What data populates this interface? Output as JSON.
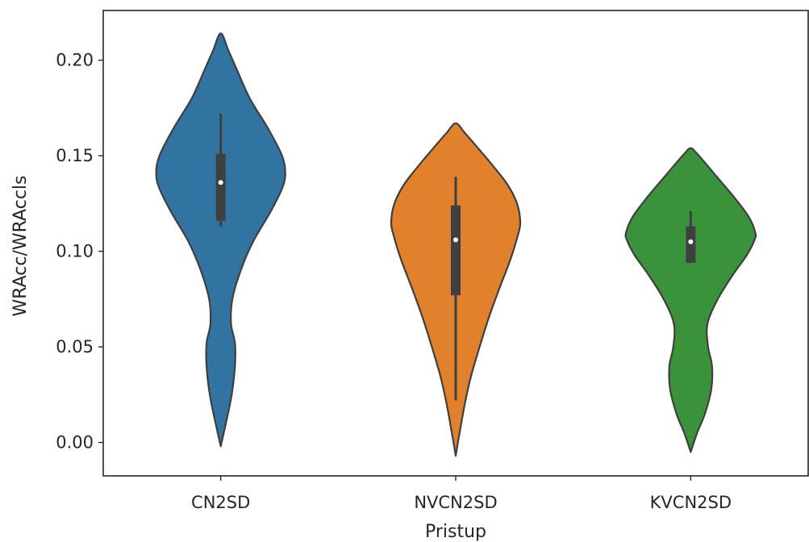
{
  "chart_data": {
    "type": "violin",
    "xlabel": "Pristup",
    "ylabel": "WRAcc/WRAccls",
    "ylim": [
      -0.0175,
      0.226
    ],
    "yticks": [
      0.0,
      0.05,
      0.1,
      0.15,
      0.2
    ],
    "ytick_labels": [
      "0.00",
      "0.05",
      "0.10",
      "0.15",
      "0.20"
    ],
    "categories": [
      "CN2SD",
      "NVCN2SD",
      "KVCN2SD"
    ],
    "series": [
      {
        "color": "#3274a1",
        "median": 0.136,
        "q1": 0.116,
        "q3": 0.151,
        "whisker_low": 0.113,
        "whisker_high": 0.172,
        "range": [
          -0.002,
          0.214
        ],
        "density_profile": [
          [
            -0.002,
            0.0
          ],
          [
            0.01,
            0.08
          ],
          [
            0.025,
            0.17
          ],
          [
            0.04,
            0.22
          ],
          [
            0.052,
            0.22
          ],
          [
            0.062,
            0.16
          ],
          [
            0.075,
            0.18
          ],
          [
            0.09,
            0.31
          ],
          [
            0.105,
            0.5
          ],
          [
            0.12,
            0.76
          ],
          [
            0.132,
            0.94
          ],
          [
            0.14,
            1.0
          ],
          [
            0.15,
            0.95
          ],
          [
            0.165,
            0.72
          ],
          [
            0.18,
            0.45
          ],
          [
            0.195,
            0.25
          ],
          [
            0.205,
            0.12
          ],
          [
            0.214,
            0.0
          ]
        ]
      },
      {
        "color": "#e1812c",
        "median": 0.106,
        "q1": 0.077,
        "q3": 0.124,
        "whisker_low": 0.022,
        "whisker_high": 0.139,
        "range": [
          -0.007,
          0.167
        ],
        "density_profile": [
          [
            -0.007,
            0.0
          ],
          [
            0.005,
            0.06
          ],
          [
            0.02,
            0.14
          ],
          [
            0.035,
            0.24
          ],
          [
            0.05,
            0.37
          ],
          [
            0.065,
            0.51
          ],
          [
            0.08,
            0.67
          ],
          [
            0.095,
            0.84
          ],
          [
            0.108,
            0.96
          ],
          [
            0.115,
            1.0
          ],
          [
            0.125,
            0.95
          ],
          [
            0.135,
            0.8
          ],
          [
            0.145,
            0.57
          ],
          [
            0.155,
            0.32
          ],
          [
            0.162,
            0.14
          ],
          [
            0.167,
            0.0
          ]
        ]
      },
      {
        "color": "#3a923a",
        "median": 0.105,
        "q1": 0.094,
        "q3": 0.113,
        "whisker_low": 0.094,
        "whisker_high": 0.121,
        "range": [
          -0.005,
          0.154
        ],
        "density_profile": [
          [
            -0.005,
            0.0
          ],
          [
            0.005,
            0.1
          ],
          [
            0.015,
            0.22
          ],
          [
            0.028,
            0.32
          ],
          [
            0.04,
            0.33
          ],
          [
            0.05,
            0.27
          ],
          [
            0.062,
            0.26
          ],
          [
            0.075,
            0.42
          ],
          [
            0.088,
            0.66
          ],
          [
            0.098,
            0.87
          ],
          [
            0.106,
            0.99
          ],
          [
            0.11,
            1.0
          ],
          [
            0.118,
            0.9
          ],
          [
            0.128,
            0.68
          ],
          [
            0.138,
            0.43
          ],
          [
            0.146,
            0.23
          ],
          [
            0.151,
            0.1
          ],
          [
            0.154,
            0.0
          ]
        ]
      }
    ],
    "grid": false,
    "legend": "none"
  }
}
